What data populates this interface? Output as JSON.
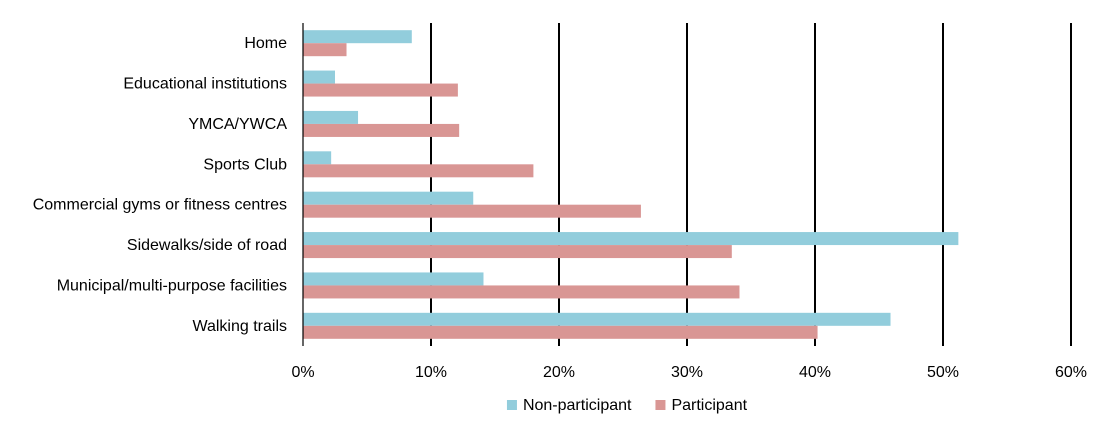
{
  "chart_data": {
    "type": "bar",
    "orientation": "horizontal",
    "title": "",
    "xlabel": "",
    "ylabel": "",
    "categories": [
      "Home",
      "Educational institutions",
      "YMCA/YWCA",
      "Sports Club",
      "Commercial gyms or fitness centres",
      "Sidewalks/side of road",
      "Municipal/multi-purpose facilities",
      "Walking trails"
    ],
    "series": [
      {
        "name": "Non-participant",
        "color": "#92CDDC",
        "values": [
          8.5,
          2.5,
          4.3,
          2.2,
          13.3,
          51.2,
          14.1,
          45.9
        ]
      },
      {
        "name": "Participant",
        "color": "#D99694",
        "values": [
          3.4,
          12.1,
          12.2,
          18.0,
          26.4,
          33.5,
          34.1,
          40.2
        ]
      }
    ],
    "xlim": [
      0,
      60
    ],
    "xticks": [
      "0%",
      "10%",
      "20%",
      "30%",
      "40%",
      "50%",
      "60%"
    ],
    "grid": "vertical",
    "legend_position": "bottom"
  }
}
